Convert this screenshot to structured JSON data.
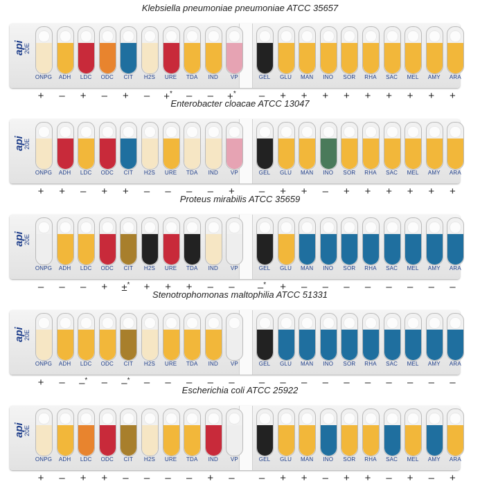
{
  "brand": {
    "logo": "api",
    "version": "20E"
  },
  "tests_left": [
    "ONPG",
    "ADH",
    "LDC",
    "ODC",
    "CIT",
    "H2S",
    "URE",
    "TDA",
    "IND",
    "VP"
  ],
  "tests_right": [
    "GEL",
    "GLU",
    "MAN",
    "INO",
    "SOR",
    "RHA",
    "SAC",
    "MEL",
    "AMY",
    "ARA"
  ],
  "colors": {
    "yellow": "#f2b73a",
    "pale": "#f6e6c4",
    "red": "#c82a3a",
    "orange": "#e8842e",
    "blue": "#1f6f9f",
    "green": "#4a7a5a",
    "black": "#222222",
    "pink": "#e6a3b3",
    "brown": "#a87f2c",
    "gray": "#eeeeee"
  },
  "strips": [
    {
      "title": "Klebsiella pneumoniae pneumoniae ATCC 35657",
      "cups": [
        "pale",
        "yellow",
        "red",
        "orange",
        "blue",
        "pale",
        "red",
        "yellow",
        "yellow",
        "pink",
        "black",
        "yellow",
        "yellow",
        "yellow",
        "yellow",
        "yellow",
        "yellow",
        "yellow",
        "yellow",
        "yellow"
      ],
      "results": [
        "+",
        "–",
        "+",
        "–",
        "+",
        "–",
        "+*",
        "–",
        "–",
        "+*",
        "–",
        "+",
        "+",
        "+",
        "+",
        "+",
        "+",
        "+",
        "+",
        "+"
      ]
    },
    {
      "title": "Enterobacter cloacae ATCC 13047",
      "cups": [
        "pale",
        "red",
        "yellow",
        "red",
        "blue",
        "pale",
        "yellow",
        "pale",
        "pale",
        "pink",
        "black",
        "yellow",
        "yellow",
        "green",
        "yellow",
        "yellow",
        "yellow",
        "yellow",
        "yellow",
        "yellow"
      ],
      "results": [
        "+",
        "+",
        "–",
        "+",
        "+",
        "–",
        "–",
        "–",
        "–",
        "+",
        "–",
        "+",
        "+",
        "–",
        "+",
        "+",
        "+",
        "+",
        "+",
        "+"
      ]
    },
    {
      "title": "Proteus mirabilis ATCC 35659",
      "cups": [
        "gray",
        "yellow",
        "yellow",
        "red",
        "brown",
        "black",
        "red",
        "black",
        "pale",
        "gray",
        "black",
        "yellow",
        "blue",
        "blue",
        "blue",
        "blue",
        "blue",
        "blue",
        "blue",
        "blue"
      ],
      "results": [
        "–",
        "–",
        "–",
        "+",
        "±*",
        "+",
        "+",
        "+",
        "–",
        "–",
        "–*",
        "+",
        "–",
        "–",
        "–",
        "–",
        "–",
        "–",
        "–",
        "–"
      ]
    },
    {
      "title": "Stenotrophomonas maltophilia ATCC 51331",
      "cups": [
        "pale",
        "yellow",
        "yellow",
        "yellow",
        "brown",
        "pale",
        "yellow",
        "yellow",
        "yellow",
        "gray",
        "black",
        "blue",
        "blue",
        "blue",
        "blue",
        "blue",
        "blue",
        "blue",
        "blue",
        "blue"
      ],
      "results": [
        "+",
        "–",
        "–*",
        "–",
        "–*",
        "–",
        "–",
        "–",
        "–",
        "–",
        "–",
        "–",
        "–",
        "–",
        "–",
        "–",
        "–",
        "–",
        "–",
        "–"
      ]
    },
    {
      "title": "Escherichia coli ATCC 25922",
      "cups": [
        "pale",
        "yellow",
        "orange",
        "red",
        "brown",
        "pale",
        "yellow",
        "yellow",
        "red",
        "gray",
        "black",
        "yellow",
        "yellow",
        "blue",
        "yellow",
        "yellow",
        "blue",
        "yellow",
        "blue",
        "yellow"
      ],
      "results": [
        "+",
        "–",
        "+",
        "+",
        "–",
        "–",
        "–",
        "–",
        "+",
        "–",
        "–",
        "+",
        "+",
        "–",
        "+",
        "+",
        "–",
        "+",
        "–",
        "+"
      ]
    }
  ]
}
